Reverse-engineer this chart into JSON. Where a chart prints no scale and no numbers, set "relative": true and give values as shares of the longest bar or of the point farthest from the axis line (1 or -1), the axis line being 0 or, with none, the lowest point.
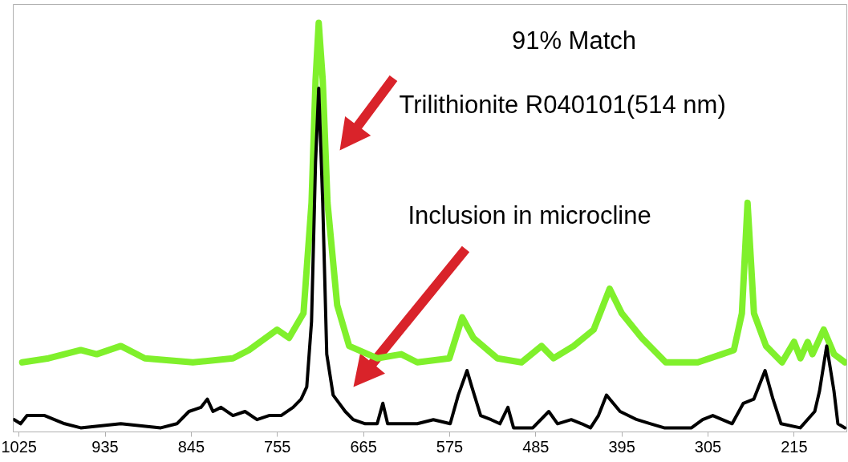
{
  "chart_data": {
    "type": "line",
    "relative": true,
    "xlim": [
      1031,
      160
    ],
    "xticks": [
      1025,
      935,
      845,
      755,
      665,
      575,
      485,
      395,
      305,
      215
    ],
    "grid": false,
    "marker": "none",
    "line_style": "solid",
    "annotations": [
      "91% Match",
      "Trilithionite R040101(514 nm)",
      "Inclusion in microcline"
    ],
    "series": [
      {
        "color": "#80f02c",
        "x": [
          1021.6,
          994,
          960.5,
          943.8,
          918.6,
          893.5,
          843.3,
          801.4,
          784.7,
          755.3,
          742.8,
          727.7,
          719.3,
          715.1,
          711.8,
          707.6,
          702.6,
          692.5,
          680,
          650.7,
          625.6,
          608.8,
          575.3,
          561.9,
          550.2,
          525.1,
          500,
          479,
          466.4,
          445.4,
          424.5,
          407.8,
          395.2,
          374.3,
          349.2,
          315.7,
          290.5,
          278,
          269.6,
          263.7,
          257,
          244.4,
          227.7,
          215.1,
          208.4,
          200.9,
          195.9,
          184.1,
          173.3,
          162
        ],
        "values": [
          0.17,
          0.18,
          0.2,
          0.19,
          0.21,
          0.18,
          0.17,
          0.18,
          0.2,
          0.25,
          0.23,
          0.29,
          0.56,
          0.86,
          1,
          0.86,
          0.56,
          0.31,
          0.21,
          0.18,
          0.19,
          0.17,
          0.18,
          0.28,
          0.23,
          0.18,
          0.17,
          0.21,
          0.18,
          0.21,
          0.25,
          0.35,
          0.29,
          0.23,
          0.17,
          0.17,
          0.19,
          0.2,
          0.29,
          0.56,
          0.29,
          0.21,
          0.17,
          0.22,
          0.18,
          0.22,
          0.19,
          0.25,
          0.19,
          0.17
        ]
      },
      {
        "color": "#000000",
        "x": [
          1030,
          1023.3,
          1016.6,
          998.2,
          977.3,
          960.5,
          918.6,
          876.8,
          860,
          847.4,
          834.9,
          828.2,
          822.3,
          813.9,
          801.4,
          788.8,
          776.3,
          763.7,
          751.1,
          738.6,
          730.2,
          724.3,
          719.3,
          715.1,
          711.8,
          707.6,
          703.4,
          696.7,
          684.1,
          675.8,
          663.2,
          650.7,
          644.8,
          639.8,
          608.8,
          592,
          574.4,
          566,
          556.8,
          551.8,
          542.6,
          531.7,
          522.5,
          514.1,
          508.2,
          488.1,
          471.4,
          462.2,
          447.9,
          437,
          427.8,
          419.5,
          411.1,
          396.9,
          379.3,
          365,
          350.8,
          322.3,
          310.6,
          300,
          279.8,
          268.1,
          257.2,
          245.4,
          237.1,
          228.7,
          208.6,
          193.5,
          188.5,
          181,
          173.4,
          169.3,
          162
        ],
        "values": [
          0.03,
          0.02,
          0.04,
          0.04,
          0.02,
          0.01,
          0.02,
          0.01,
          0.02,
          0.05,
          0.06,
          0.08,
          0.05,
          0.06,
          0.04,
          0.05,
          0.03,
          0.04,
          0.04,
          0.06,
          0.08,
          0.11,
          0.27,
          0.66,
          0.84,
          0.56,
          0.19,
          0.09,
          0.05,
          0.03,
          0.02,
          0.02,
          0.07,
          0.02,
          0.02,
          0.03,
          0.02,
          0.09,
          0.15,
          0.11,
          0.04,
          0.03,
          0.02,
          0.06,
          0.01,
          0.01,
          0.05,
          0.02,
          0.03,
          0.02,
          0.01,
          0.04,
          0.09,
          0.05,
          0.03,
          0.02,
          0.01,
          0.01,
          0.03,
          0.04,
          0.02,
          0.07,
          0.08,
          0.15,
          0.08,
          0.02,
          0.01,
          0.05,
          0.1,
          0.21,
          0.1,
          0.02,
          0.01
        ]
      }
    ]
  }
}
